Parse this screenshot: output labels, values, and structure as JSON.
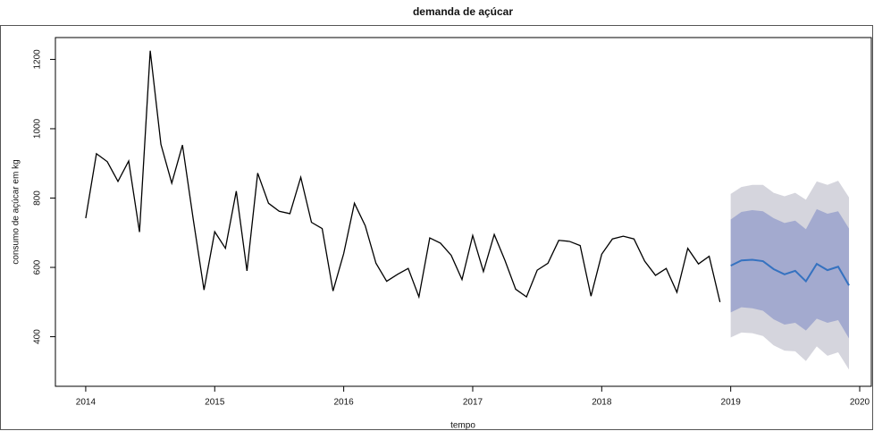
{
  "chart_data": {
    "type": "line",
    "title": "demanda de açúcar",
    "xlabel": "tempo",
    "ylabel": "consumo de açúcar em kg",
    "x": [
      2014,
      2014.083,
      2014.167,
      2014.25,
      2014.333,
      2014.417,
      2014.5,
      2014.583,
      2014.667,
      2014.75,
      2014.833,
      2014.917,
      2015,
      2015.083,
      2015.167,
      2015.25,
      2015.333,
      2015.417,
      2015.5,
      2015.583,
      2015.667,
      2015.75,
      2015.833,
      2015.917,
      2016,
      2016.083,
      2016.167,
      2016.25,
      2016.333,
      2016.417,
      2016.5,
      2016.583,
      2016.667,
      2016.75,
      2016.833,
      2016.917,
      2017,
      2017.083,
      2017.167,
      2017.25,
      2017.333,
      2017.417,
      2017.5,
      2017.583,
      2017.667,
      2017.75,
      2017.833,
      2017.917,
      2018,
      2018.083,
      2018.167,
      2018.25,
      2018.333,
      2018.417,
      2018.5,
      2018.583,
      2018.667,
      2018.75,
      2018.833,
      2018.917
    ],
    "values": [
      742,
      928,
      905,
      848,
      907,
      702,
      1225,
      955,
      843,
      953,
      740,
      535,
      703,
      655,
      820,
      590,
      872,
      785,
      762,
      755,
      860,
      730,
      712,
      532,
      640,
      785,
      720,
      612,
      560,
      580,
      597,
      515,
      685,
      670,
      635,
      565,
      692,
      588,
      695,
      620,
      537,
      515,
      592,
      612,
      678,
      675,
      663,
      517,
      638,
      682,
      690,
      682,
      618,
      577,
      597,
      528,
      655,
      610,
      632,
      500
    ],
    "color": "#000000",
    "forecast": {
      "x": [
        2019,
        2019.083,
        2019.167,
        2019.25,
        2019.333,
        2019.417,
        2019.5,
        2019.583,
        2019.667,
        2019.75,
        2019.833,
        2019.917
      ],
      "mean": [
        605,
        620,
        622,
        618,
        595,
        580,
        590,
        560,
        610,
        592,
        602,
        548
      ],
      "lo80": [
        470,
        485,
        482,
        475,
        450,
        435,
        440,
        418,
        452,
        440,
        448,
        395
      ],
      "hi80": [
        738,
        760,
        765,
        762,
        742,
        728,
        735,
        710,
        768,
        755,
        762,
        712
      ],
      "lo95": [
        398,
        412,
        410,
        402,
        375,
        360,
        358,
        330,
        372,
        345,
        355,
        305
      ],
      "hi95": [
        812,
        832,
        838,
        838,
        815,
        805,
        815,
        795,
        848,
        838,
        850,
        802
      ],
      "color": "#3572c0",
      "color80": "#a3aacf",
      "color95": "#d5d5dd"
    },
    "xlim": [
      2013.765,
      2020.09
    ],
    "ylim": [
      257,
      1263
    ],
    "xticks": [
      2014,
      2015,
      2016,
      2017,
      2018,
      2019,
      2020
    ],
    "yticks": [
      400,
      600,
      800,
      1000,
      1200
    ]
  }
}
